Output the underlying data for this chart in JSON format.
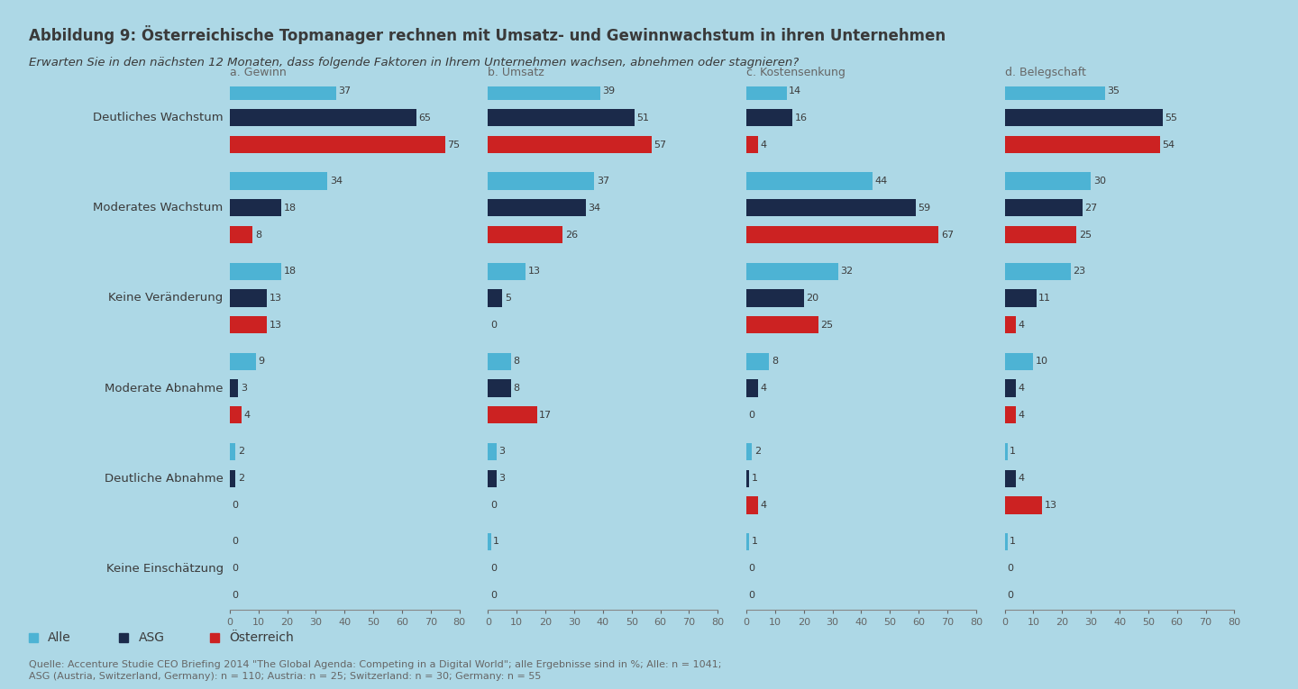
{
  "title": "Abbildung 9: Österreichische Topmanager rechnen mit Umsatz- und Gewinnwachstum in ihren Unternehmen",
  "subtitle": "Erwarten Sie in den nächsten 12 Monaten, dass folgende Faktoren in Ihrem Unternehmen wachsen, abnehmen oder stagnieren?",
  "footnote": "Quelle: Accenture Studie CEO Briefing 2014 \"The Global Agenda: Competing in a Digital World\"; alle Ergebnisse sind in %; Alle: n = 1041;\nASG (Austria, Switzerland, Germany): n = 110; Austria: n = 25; Switzerland: n = 30; Germany: n = 55",
  "background_color": "#add8e6",
  "bar_color_alle": "#4db3d4",
  "bar_color_asg": "#1b2a4a",
  "bar_color_oe": "#cc2222",
  "categories": [
    "Deutliches Wachstum",
    "Moderates Wachstum",
    "Keine Veränderung",
    "Moderate Abnahme",
    "Deutliche Abnahme",
    "Keine Einschätzung"
  ],
  "subplots": [
    {
      "title": "a. Gewinn",
      "alle": [
        37,
        34,
        18,
        9,
        2,
        0
      ],
      "asg": [
        65,
        18,
        13,
        3,
        2,
        0
      ],
      "oe": [
        75,
        8,
        13,
        4,
        0,
        0
      ]
    },
    {
      "title": "b. Umsatz",
      "alle": [
        39,
        37,
        13,
        8,
        3,
        1
      ],
      "asg": [
        51,
        34,
        5,
        8,
        3,
        0
      ],
      "oe": [
        57,
        26,
        0,
        17,
        0,
        0
      ]
    },
    {
      "title": "c. Kostensenkung",
      "alle": [
        14,
        44,
        32,
        8,
        2,
        1
      ],
      "asg": [
        16,
        59,
        20,
        4,
        1,
        0
      ],
      "oe": [
        4,
        67,
        25,
        0,
        4,
        0
      ]
    },
    {
      "title": "d. Belegschaft",
      "alle": [
        35,
        30,
        23,
        10,
        1,
        1
      ],
      "asg": [
        55,
        27,
        11,
        4,
        4,
        0
      ],
      "oe": [
        54,
        25,
        4,
        4,
        13,
        0
      ]
    }
  ],
  "xlim": [
    0,
    80
  ],
  "xticks": [
    0,
    10,
    20,
    30,
    40,
    50,
    60,
    70,
    80
  ],
  "legend_labels": [
    "Alle",
    "ASG",
    "Österreich"
  ]
}
